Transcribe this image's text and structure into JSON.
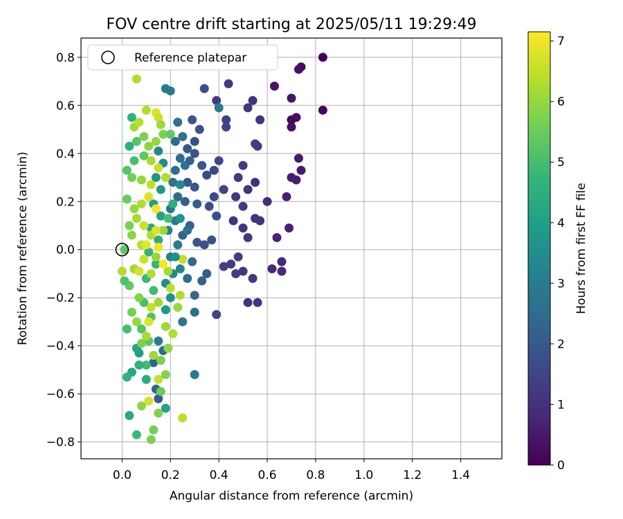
{
  "chart_data": {
    "type": "scatter",
    "title": "FOV centre drift starting at 2025/05/11 19:29:49",
    "xlabel": "Angular distance from reference (arcmin)",
    "ylabel": "Rotation from reference (arcmin)",
    "xlim": [
      -0.17,
      1.57
    ],
    "ylim": [
      -0.87,
      0.88
    ],
    "xticks": [
      0.0,
      0.2,
      0.4,
      0.6,
      0.8,
      1.0,
      1.2,
      1.4
    ],
    "xtick_labels": [
      "0.0",
      "0.2",
      "0.4",
      "0.6",
      "0.8",
      "1.0",
      "1.2",
      "1.4"
    ],
    "yticks": [
      -0.8,
      -0.6,
      -0.4,
      -0.2,
      0.0,
      0.2,
      0.4,
      0.6,
      0.8
    ],
    "ytick_labels": [
      "−0.8",
      "−0.6",
      "−0.4",
      "−0.2",
      "0.0",
      "0.2",
      "0.4",
      "0.6",
      "0.8"
    ],
    "grid": true,
    "legend": {
      "position": "top-left",
      "entries": [
        "Reference platepar"
      ]
    },
    "reference_point": {
      "x": 0.0,
      "y": 0.0
    },
    "colorbar": {
      "label": "Hours from first FF file",
      "range": [
        0,
        7.15
      ],
      "ticks": [
        0,
        1,
        2,
        3,
        4,
        5,
        6,
        7
      ],
      "tick_labels": [
        "0",
        "1",
        "2",
        "3",
        "4",
        "5",
        "6",
        "7"
      ],
      "colormap": "viridis",
      "stops": [
        "#440154",
        "#482878",
        "#3e4989",
        "#31688e",
        "#26828e",
        "#1f9e89",
        "#35b779",
        "#6ece58",
        "#b5de2b",
        "#fde725"
      ]
    },
    "points": [
      {
        "x": 0.83,
        "y": 0.8,
        "t": 0.05
      },
      {
        "x": 0.74,
        "y": 0.76,
        "t": 0.2
      },
      {
        "x": 0.73,
        "y": 0.75,
        "t": 0.3
      },
      {
        "x": 0.83,
        "y": 0.58,
        "t": 0.1
      },
      {
        "x": 0.7,
        "y": 0.63,
        "t": 0.4
      },
      {
        "x": 0.63,
        "y": 0.68,
        "t": 0.4
      },
      {
        "x": 0.72,
        "y": 0.55,
        "t": 0.3
      },
      {
        "x": 0.7,
        "y": 0.54,
        "t": 0.2
      },
      {
        "x": 0.7,
        "y": 0.51,
        "t": 0.3
      },
      {
        "x": 0.73,
        "y": 0.38,
        "t": 0.5
      },
      {
        "x": 0.74,
        "y": 0.33,
        "t": 0.5
      },
      {
        "x": 0.72,
        "y": 0.29,
        "t": 0.6
      },
      {
        "x": 0.7,
        "y": 0.3,
        "t": 0.6
      },
      {
        "x": 0.68,
        "y": 0.22,
        "t": 0.6
      },
      {
        "x": 0.69,
        "y": 0.09,
        "t": 0.7
      },
      {
        "x": 0.64,
        "y": 0.05,
        "t": 0.7
      },
      {
        "x": 0.66,
        "y": -0.05,
        "t": 0.8
      },
      {
        "x": 0.62,
        "y": -0.08,
        "t": 0.8
      },
      {
        "x": 0.66,
        "y": -0.09,
        "t": 0.8
      },
      {
        "x": 0.6,
        "y": 0.2,
        "t": 0.9
      },
      {
        "x": 0.56,
        "y": -0.22,
        "t": 1.0
      },
      {
        "x": 0.52,
        "y": -0.22,
        "t": 1.0
      },
      {
        "x": 0.54,
        "y": 0.62,
        "t": 1.0
      },
      {
        "x": 0.52,
        "y": 0.59,
        "t": 1.1
      },
      {
        "x": 0.57,
        "y": 0.54,
        "t": 1.1
      },
      {
        "x": 0.44,
        "y": 0.69,
        "t": 1.2
      },
      {
        "x": 0.39,
        "y": 0.62,
        "t": 1.3
      },
      {
        "x": 0.34,
        "y": 0.67,
        "t": 1.7
      },
      {
        "x": 0.4,
        "y": 0.59,
        "t": 2.9
      },
      {
        "x": 0.43,
        "y": 0.54,
        "t": 1.4
      },
      {
        "x": 0.43,
        "y": 0.51,
        "t": 1.5
      },
      {
        "x": 0.55,
        "y": 0.44,
        "t": 1.3
      },
      {
        "x": 0.56,
        "y": 0.43,
        "t": 1.3
      },
      {
        "x": 0.5,
        "y": 0.35,
        "t": 1.2
      },
      {
        "x": 0.48,
        "y": 0.3,
        "t": 1.2
      },
      {
        "x": 0.52,
        "y": 0.25,
        "t": 1.1
      },
      {
        "x": 0.55,
        "y": 0.28,
        "t": 1.0
      },
      {
        "x": 0.47,
        "y": 0.22,
        "t": 1.2
      },
      {
        "x": 0.5,
        "y": 0.18,
        "t": 1.2
      },
      {
        "x": 0.55,
        "y": 0.13,
        "t": 1.1
      },
      {
        "x": 0.57,
        "y": 0.12,
        "t": 1.0
      },
      {
        "x": 0.5,
        "y": 0.09,
        "t": 1.1
      },
      {
        "x": 0.46,
        "y": 0.12,
        "t": 1.1
      },
      {
        "x": 0.52,
        "y": 0.05,
        "t": 1.2
      },
      {
        "x": 0.48,
        "y": -0.03,
        "t": 1.3
      },
      {
        "x": 0.45,
        "y": -0.06,
        "t": 1.3
      },
      {
        "x": 0.5,
        "y": -0.09,
        "t": 1.2
      },
      {
        "x": 0.54,
        "y": -0.12,
        "t": 1.2
      },
      {
        "x": 0.47,
        "y": -0.1,
        "t": 1.3
      },
      {
        "x": 0.42,
        "y": -0.07,
        "t": 1.4
      },
      {
        "x": 0.39,
        "y": -0.27,
        "t": 1.5
      },
      {
        "x": 0.35,
        "y": 0.31,
        "t": 1.6
      },
      {
        "x": 0.38,
        "y": 0.33,
        "t": 1.5
      },
      {
        "x": 0.4,
        "y": 0.37,
        "t": 1.6
      },
      {
        "x": 0.42,
        "y": 0.25,
        "t": 1.5
      },
      {
        "x": 0.38,
        "y": 0.22,
        "t": 1.6
      },
      {
        "x": 0.36,
        "y": 0.18,
        "t": 1.7
      },
      {
        "x": 0.39,
        "y": 0.14,
        "t": 1.7
      },
      {
        "x": 0.37,
        "y": 0.04,
        "t": 1.8
      },
      {
        "x": 0.34,
        "y": 0.02,
        "t": 1.8
      },
      {
        "x": 0.31,
        "y": 0.03,
        "t": 1.9
      },
      {
        "x": 0.3,
        "y": 0.45,
        "t": 1.8
      },
      {
        "x": 0.27,
        "y": 0.42,
        "t": 1.9
      },
      {
        "x": 0.32,
        "y": 0.5,
        "t": 1.8
      },
      {
        "x": 0.29,
        "y": 0.54,
        "t": 1.9
      },
      {
        "x": 0.3,
        "y": 0.4,
        "t": 1.9
      },
      {
        "x": 0.33,
        "y": 0.35,
        "t": 2.0
      },
      {
        "x": 0.27,
        "y": 0.28,
        "t": 2.0
      },
      {
        "x": 0.3,
        "y": 0.26,
        "t": 2.0
      },
      {
        "x": 0.26,
        "y": 0.2,
        "t": 2.1
      },
      {
        "x": 0.31,
        "y": 0.19,
        "t": 2.1
      },
      {
        "x": 0.28,
        "y": 0.1,
        "t": 2.2
      },
      {
        "x": 0.25,
        "y": 0.06,
        "t": 2.3
      },
      {
        "x": 0.29,
        "y": -0.05,
        "t": 2.4
      },
      {
        "x": 0.27,
        "y": -0.12,
        "t": 2.5
      },
      {
        "x": 0.3,
        "y": -0.19,
        "t": 2.4
      },
      {
        "x": 0.33,
        "y": -0.13,
        "t": 2.2
      },
      {
        "x": 0.35,
        "y": -0.1,
        "t": 2.1
      },
      {
        "x": 0.3,
        "y": -0.26,
        "t": 2.6
      },
      {
        "x": 0.25,
        "y": -0.3,
        "t": 2.8
      },
      {
        "x": 0.3,
        "y": -0.52,
        "t": 2.9
      },
      {
        "x": 0.23,
        "y": 0.53,
        "t": 2.7
      },
      {
        "x": 0.25,
        "y": 0.47,
        "t": 2.6
      },
      {
        "x": 0.18,
        "y": 0.67,
        "t": 3.0
      },
      {
        "x": 0.2,
        "y": 0.66,
        "t": 2.9
      },
      {
        "x": 0.22,
        "y": 0.45,
        "t": 2.5
      },
      {
        "x": 0.24,
        "y": 0.38,
        "t": 2.5
      },
      {
        "x": 0.22,
        "y": 0.33,
        "t": 2.6
      },
      {
        "x": 0.21,
        "y": 0.28,
        "t": 2.7
      },
      {
        "x": 0.23,
        "y": 0.22,
        "t": 2.6
      },
      {
        "x": 0.2,
        "y": 0.17,
        "t": 2.8
      },
      {
        "x": 0.22,
        "y": 0.12,
        "t": 2.9
      },
      {
        "x": 0.19,
        "y": 0.08,
        "t": 3.1
      },
      {
        "x": 0.23,
        "y": 0.02,
        "t": 3.0
      },
      {
        "x": 0.2,
        "y": -0.03,
        "t": 3.2
      },
      {
        "x": 0.21,
        "y": -0.1,
        "t": 3.3
      },
      {
        "x": 0.18,
        "y": -0.14,
        "t": 3.5
      },
      {
        "x": 0.2,
        "y": -0.2,
        "t": 3.6
      },
      {
        "x": 0.18,
        "y": -0.25,
        "t": 3.9
      },
      {
        "x": 0.14,
        "y": -0.58,
        "t": 2.3
      },
      {
        "x": 0.13,
        "y": -0.47,
        "t": 2.2
      },
      {
        "x": 0.15,
        "y": -0.62,
        "t": 2.1
      },
      {
        "x": 0.17,
        "y": -0.42,
        "t": 2.5
      },
      {
        "x": 0.15,
        "y": -0.38,
        "t": 3.0
      },
      {
        "x": 0.15,
        "y": 0.41,
        "t": 3.3
      },
      {
        "x": 0.17,
        "y": 0.36,
        "t": 3.5
      },
      {
        "x": 0.14,
        "y": 0.3,
        "t": 3.7
      },
      {
        "x": 0.16,
        "y": 0.25,
        "t": 3.8
      },
      {
        "x": 0.13,
        "y": 0.19,
        "t": 4.0
      },
      {
        "x": 0.16,
        "y": 0.14,
        "t": 4.1
      },
      {
        "x": 0.12,
        "y": 0.09,
        "t": 4.3
      },
      {
        "x": 0.15,
        "y": 0.04,
        "t": 4.4
      },
      {
        "x": 0.11,
        "y": -0.01,
        "t": 4.6
      },
      {
        "x": 0.14,
        "y": -0.06,
        "t": 4.7
      },
      {
        "x": 0.1,
        "y": -0.12,
        "t": 4.8
      },
      {
        "x": 0.13,
        "y": -0.17,
        "t": 4.9
      },
      {
        "x": 0.09,
        "y": -0.22,
        "t": 5.0
      },
      {
        "x": 0.12,
        "y": -0.28,
        "t": 5.1
      },
      {
        "x": 0.08,
        "y": -0.33,
        "t": 5.2
      },
      {
        "x": 0.11,
        "y": -0.38,
        "t": 5.3
      },
      {
        "x": 0.07,
        "y": -0.43,
        "t": 4.0
      },
      {
        "x": 0.06,
        "y": -0.41,
        "t": 4.2
      },
      {
        "x": 0.1,
        "y": -0.48,
        "t": 4.9
      },
      {
        "x": 0.07,
        "y": -0.48,
        "t": 4.6
      },
      {
        "x": 0.04,
        "y": -0.51,
        "t": 4.2
      },
      {
        "x": 0.02,
        "y": -0.53,
        "t": 4.6
      },
      {
        "x": 0.1,
        "y": -0.54,
        "t": 4.4
      },
      {
        "x": 0.18,
        "y": -0.66,
        "t": 4.1
      },
      {
        "x": 0.03,
        "y": -0.69,
        "t": 4.3
      },
      {
        "x": 0.06,
        "y": -0.77,
        "t": 4.8
      },
      {
        "x": 0.13,
        "y": -0.75,
        "t": 5.6
      },
      {
        "x": 0.12,
        "y": -0.79,
        "t": 5.7
      },
      {
        "x": 0.25,
        "y": -0.7,
        "t": 6.4
      },
      {
        "x": 0.11,
        "y": -0.63,
        "t": 6.7
      },
      {
        "x": 0.08,
        "y": -0.65,
        "t": 5.9
      },
      {
        "x": 0.15,
        "y": -0.68,
        "t": 5.8
      },
      {
        "x": 0.16,
        "y": -0.59,
        "t": 5.5
      },
      {
        "x": 0.15,
        "y": -0.54,
        "t": 6.5
      },
      {
        "x": 0.18,
        "y": -0.52,
        "t": 5.8
      },
      {
        "x": 0.16,
        "y": -0.46,
        "t": 5.7
      },
      {
        "x": 0.19,
        "y": -0.41,
        "t": 5.9
      },
      {
        "x": 0.13,
        "y": -0.44,
        "t": 6.1
      },
      {
        "x": 0.08,
        "y": -0.39,
        "t": 5.7
      },
      {
        "x": 0.1,
        "y": -0.36,
        "t": 6.2
      },
      {
        "x": 0.06,
        "y": -0.3,
        "t": 6.0
      },
      {
        "x": 0.04,
        "y": -0.26,
        "t": 5.6
      },
      {
        "x": 0.07,
        "y": -0.2,
        "t": 5.8
      },
      {
        "x": 0.03,
        "y": -0.15,
        "t": 5.4
      },
      {
        "x": 0.01,
        "y": -0.13,
        "t": 5.1
      },
      {
        "x": 0.05,
        "y": -0.08,
        "t": 6.1
      },
      {
        "x": 0.09,
        "y": -0.04,
        "t": 6.6
      },
      {
        "x": 0.12,
        "y": -0.1,
        "t": 6.3
      },
      {
        "x": 0.15,
        "y": -0.22,
        "t": 6.1
      },
      {
        "x": 0.2,
        "y": -0.16,
        "t": 6.4
      },
      {
        "x": 0.23,
        "y": -0.24,
        "t": 6.0
      },
      {
        "x": 0.21,
        "y": -0.35,
        "t": 6.3
      },
      {
        "x": 0.18,
        "y": -0.32,
        "t": 6.1
      },
      {
        "x": 0.24,
        "y": -0.19,
        "t": 6.3
      },
      {
        "x": 0.25,
        "y": -0.04,
        "t": 6.5
      },
      {
        "x": 0.19,
        "y": -0.09,
        "t": 6.2
      },
      {
        "x": 0.14,
        "y": -0.03,
        "t": 6.0
      },
      {
        "x": 0.08,
        "y": 0.02,
        "t": 6.4
      },
      {
        "x": 0.04,
        "y": 0.06,
        "t": 5.9
      },
      {
        "x": 0.01,
        "y": 0.0,
        "t": 5.3
      },
      {
        "x": 0.03,
        "y": 0.1,
        "t": 5.7
      },
      {
        "x": 0.06,
        "y": 0.13,
        "t": 6.2
      },
      {
        "x": 0.09,
        "y": 0.1,
        "t": 6.6
      },
      {
        "x": 0.12,
        "y": 0.06,
        "t": 6.3
      },
      {
        "x": 0.15,
        "y": 0.01,
        "t": 7.0
      },
      {
        "x": 0.17,
        "y": 0.08,
        "t": 6.1
      },
      {
        "x": 0.05,
        "y": 0.17,
        "t": 6.0
      },
      {
        "x": 0.02,
        "y": 0.21,
        "t": 5.5
      },
      {
        "x": 0.08,
        "y": 0.19,
        "t": 6.3
      },
      {
        "x": 0.11,
        "y": 0.22,
        "t": 6.8
      },
      {
        "x": 0.14,
        "y": 0.17,
        "t": 7.1
      },
      {
        "x": 0.12,
        "y": 0.27,
        "t": 6.5
      },
      {
        "x": 0.08,
        "y": 0.29,
        "t": 6.0
      },
      {
        "x": 0.04,
        "y": 0.3,
        "t": 5.6
      },
      {
        "x": 0.02,
        "y": 0.33,
        "t": 5.2
      },
      {
        "x": 0.05,
        "y": 0.37,
        "t": 5.0
      },
      {
        "x": 0.09,
        "y": 0.39,
        "t": 5.4
      },
      {
        "x": 0.12,
        "y": 0.37,
        "t": 6.2
      },
      {
        "x": 0.15,
        "y": 0.34,
        "t": 6.6
      },
      {
        "x": 0.18,
        "y": 0.3,
        "t": 6.3
      },
      {
        "x": 0.03,
        "y": 0.43,
        "t": 4.5
      },
      {
        "x": 0.06,
        "y": 0.45,
        "t": 5.2
      },
      {
        "x": 0.09,
        "y": 0.47,
        "t": 5.7
      },
      {
        "x": 0.11,
        "y": 0.43,
        "t": 5.9
      },
      {
        "x": 0.14,
        "y": 0.45,
        "t": 6.0
      },
      {
        "x": 0.17,
        "y": 0.48,
        "t": 5.7
      },
      {
        "x": 0.2,
        "y": 0.48,
        "t": 5.4
      },
      {
        "x": 0.05,
        "y": 0.51,
        "t": 6.1
      },
      {
        "x": 0.07,
        "y": 0.53,
        "t": 6.4
      },
      {
        "x": 0.04,
        "y": 0.55,
        "t": 4.6
      },
      {
        "x": 0.1,
        "y": 0.58,
        "t": 6.3
      },
      {
        "x": 0.14,
        "y": 0.57,
        "t": 6.8
      },
      {
        "x": 0.15,
        "y": 0.55,
        "t": 6.6
      },
      {
        "x": 0.16,
        "y": 0.52,
        "t": 6.1
      },
      {
        "x": 0.06,
        "y": 0.71,
        "t": 6.3
      },
      {
        "x": 0.0,
        "y": -0.09,
        "t": 6.3
      },
      {
        "x": 0.02,
        "y": -0.33,
        "t": 5.0
      },
      {
        "x": 0.11,
        "y": -0.3,
        "t": 6.8
      },
      {
        "x": 0.12,
        "y": -0.24,
        "t": 6.5
      },
      {
        "x": 0.17,
        "y": -0.06,
        "t": 7.1
      },
      {
        "x": 0.14,
        "y": 0.08,
        "t": 6.8
      },
      {
        "x": 0.1,
        "y": 0.02,
        "t": 6.9
      },
      {
        "x": 0.07,
        "y": -0.09,
        "t": 6.7
      },
      {
        "x": 0.19,
        "y": 0.13,
        "t": 5.0
      },
      {
        "x": 0.21,
        "y": 0.19,
        "t": 4.5
      },
      {
        "x": 0.24,
        "y": 0.13,
        "t": 3.7
      },
      {
        "x": 0.24,
        "y": 0.27,
        "t": 3.4
      },
      {
        "x": 0.26,
        "y": 0.35,
        "t": 2.8
      },
      {
        "x": 0.28,
        "y": 0.37,
        "t": 2.3
      },
      {
        "x": 0.27,
        "y": 0.08,
        "t": 2.7
      },
      {
        "x": 0.24,
        "y": -0.08,
        "t": 3.3
      },
      {
        "x": 0.22,
        "y": -0.03,
        "t": 3.6
      }
    ]
  }
}
